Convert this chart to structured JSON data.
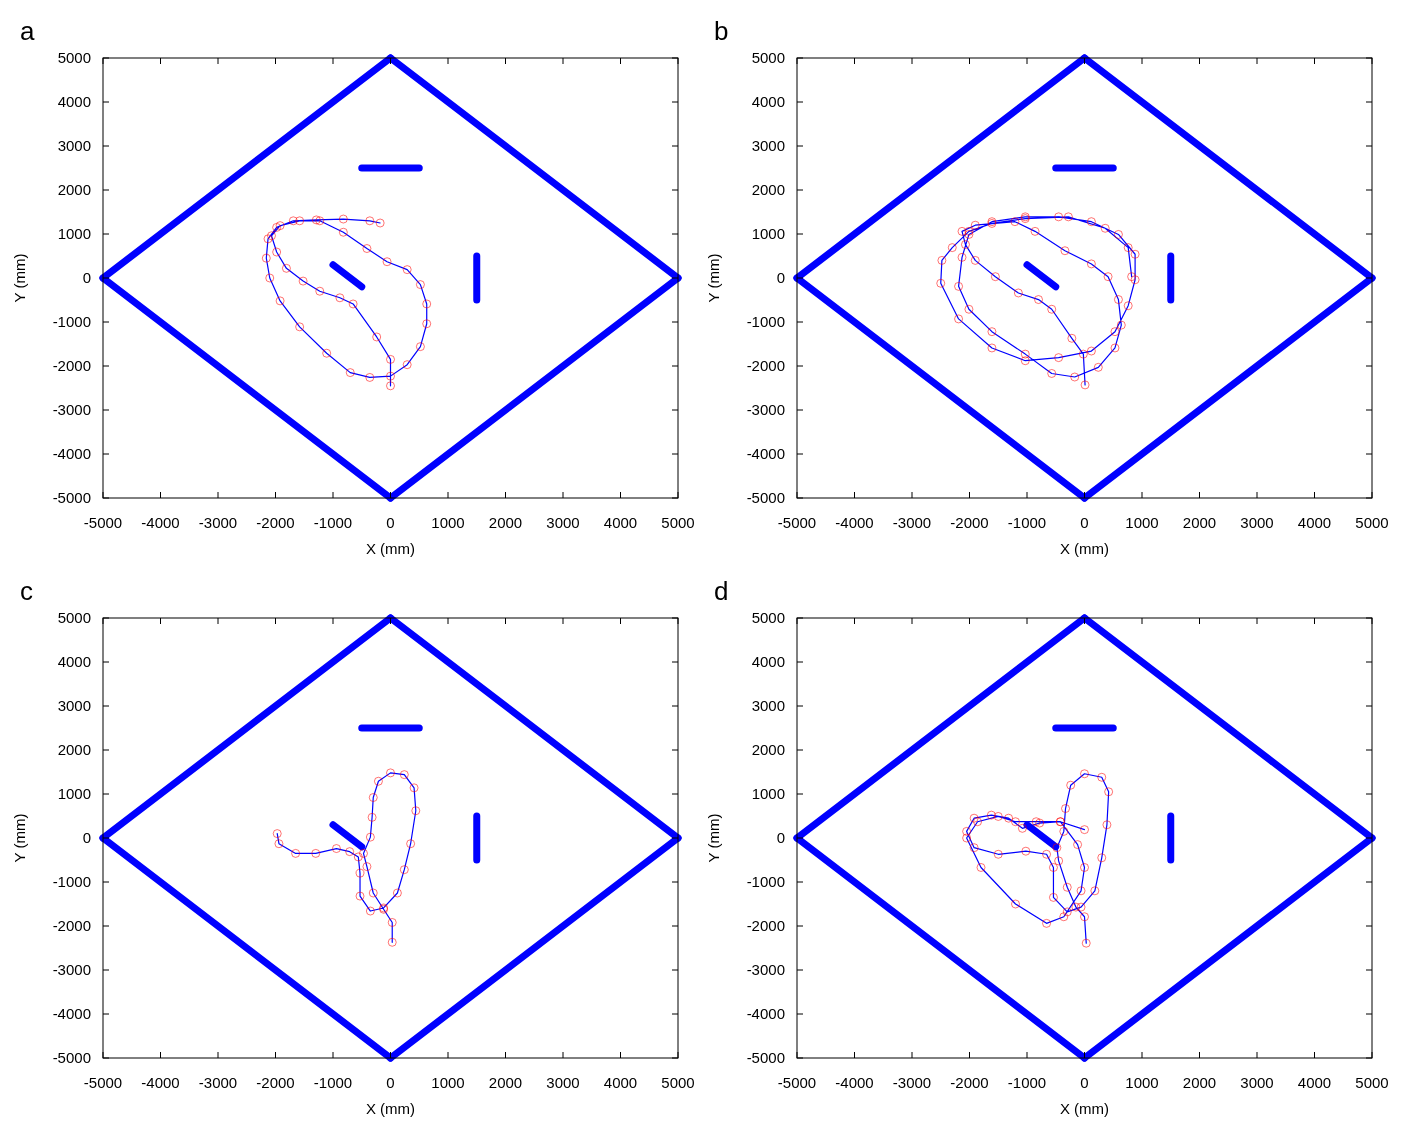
{
  "chart_data": [
    {
      "type": "line",
      "title": "a",
      "xlabel": "X (mm)",
      "ylabel": "Y (mm)",
      "xlim": [
        -5000,
        5000
      ],
      "ylim": [
        -5000,
        5000
      ],
      "xticks": [
        -5000,
        -4000,
        -3000,
        -2000,
        -1000,
        0,
        1000,
        2000,
        3000,
        4000,
        5000
      ],
      "yticks": [
        -5000,
        -4000,
        -3000,
        -2000,
        -1000,
        0,
        1000,
        2000,
        3000,
        4000,
        5000
      ],
      "series": [
        {
          "color": "#0000ff",
          "x": [
            -5000,
            0
          ],
          "values": [
            0,
            5000
          ]
        },
        {
          "color": "#0000ff",
          "x": [
            0,
            5000
          ],
          "values": [
            5000,
            0
          ]
        },
        {
          "color": "#0000ff",
          "x": [
            -5000,
            0
          ],
          "values": [
            0,
            -5000
          ]
        },
        {
          "color": "#0000ff",
          "x": [
            0,
            5000
          ],
          "values": [
            -5000,
            0
          ]
        },
        {
          "color": "#0000ff",
          "x": [
            -500,
            500
          ],
          "values": [
            2500,
            2500
          ]
        },
        {
          "color": "#0000ff",
          "x": [
            1500,
            1500
          ],
          "values": [
            500,
            -500
          ]
        },
        {
          "color": "#0000ff",
          "x": [
            -1000,
            -500
          ],
          "values": [
            300,
            -200
          ]
        },
        {
          "color": "#0000ff",
          "x": [
            0,
            0,
            -240,
            -650,
            -880,
            -1230,
            -1520,
            -1810,
            -1980,
            -2070,
            -1920,
            -1580,
            -1230,
            -820,
            -410,
            -60,
            290,
            520,
            630,
            630,
            520,
            290,
            0,
            -360,
            -700,
            -1110,
            -1580,
            -1920,
            -2100,
            -2160,
            -2130,
            -1980,
            -1690,
            -1290,
            -820,
            -360,
            -180
          ],
          "values": [
            -2450,
            -1850,
            -1340,
            -590,
            -450,
            -300,
            -70,
            220,
            590,
            960,
            1190,
            1300,
            1300,
            1040,
            670,
            370,
            190,
            -150,
            -590,
            -1040,
            -1560,
            -1970,
            -2230,
            -2260,
            -2150,
            -1710,
            -1110,
            -520,
            0,
            450,
            890,
            1150,
            1300,
            1320,
            1340,
            1300,
            1250
          ]
        },
        {
          "type": "scatter",
          "marker": "circle",
          "color": "#ff0000",
          "x": [
            0,
            0,
            -240,
            -650,
            -880,
            -1230,
            -1520,
            -1810,
            -1980,
            -2070,
            -1920,
            -1580,
            -1230,
            -820,
            -410,
            -60,
            290,
            520,
            630,
            630,
            520,
            290,
            0,
            -360,
            -700,
            -1110,
            -1580,
            -1920,
            -2100,
            -2160,
            -2130,
            -1980,
            -1690,
            -1290,
            -820,
            -360,
            -180
          ],
          "values": [
            -2450,
            -1850,
            -1340,
            -590,
            -450,
            -300,
            -70,
            220,
            590,
            960,
            1190,
            1300,
            1300,
            1040,
            670,
            370,
            190,
            -150,
            -590,
            -1040,
            -1560,
            -1970,
            -2230,
            -2260,
            -2150,
            -1710,
            -1110,
            -520,
            0,
            450,
            890,
            1150,
            1300,
            1320,
            1340,
            1300,
            1250
          ]
        }
      ]
    },
    {
      "type": "line",
      "title": "b",
      "xlabel": "X (mm)",
      "ylabel": "Y (mm)",
      "xlim": [
        -5000,
        5000
      ],
      "ylim": [
        -5000,
        5000
      ],
      "xticks": [
        -5000,
        -4000,
        -3000,
        -2000,
        -1000,
        0,
        1000,
        2000,
        3000,
        4000,
        5000
      ],
      "yticks": [
        -5000,
        -4000,
        -3000,
        -2000,
        -1000,
        0,
        1000,
        2000,
        3000,
        4000,
        5000
      ],
      "series": [
        {
          "color": "#0000ff",
          "x": [
            -5000,
            0
          ],
          "values": [
            0,
            5000
          ]
        },
        {
          "color": "#0000ff",
          "x": [
            0,
            5000
          ],
          "values": [
            5000,
            0
          ]
        },
        {
          "color": "#0000ff",
          "x": [
            -5000,
            0
          ],
          "values": [
            0,
            -5000
          ]
        },
        {
          "color": "#0000ff",
          "x": [
            0,
            5000
          ],
          "values": [
            -5000,
            0
          ]
        },
        {
          "color": "#0000ff",
          "x": [
            -500,
            500
          ],
          "values": [
            2500,
            2500
          ]
        },
        {
          "color": "#0000ff",
          "x": [
            1500,
            1500
          ],
          "values": [
            500,
            -500
          ]
        },
        {
          "color": "#0000ff",
          "x": [
            -1000,
            -500
          ],
          "values": [
            300,
            -200
          ]
        },
        {
          "color": "#0000ff",
          "x": [
            10,
            -20,
            -220,
            -570,
            -800,
            -1150,
            -1550,
            -1900,
            -2070,
            -2130,
            -1900,
            -1210,
            -860,
            -340,
            120,
            410,
            590,
            640,
            530,
            240,
            -170,
            -570,
            -1030,
            -1610,
            -2010,
            -2190,
            -2130,
            -2010,
            -1610,
            -1030,
            -450,
            120,
            590,
            880,
            880,
            760,
            530,
            120,
            -450,
            -1030,
            -1610,
            -2190,
            -2500,
            -2480,
            -2300,
            -2010,
            -1610,
            -1030,
            -280,
            360,
            760,
            820
          ],
          "values": [
            -2430,
            -1730,
            -1370,
            -710,
            -490,
            -340,
            30,
            400,
            760,
            1060,
            1200,
            1280,
            1060,
            620,
            320,
            30,
            -490,
            -1070,
            -1590,
            -2030,
            -2250,
            -2170,
            -1730,
            -1220,
            -710,
            -190,
            470,
            990,
            1280,
            1390,
            1390,
            1280,
            990,
            540,
            -40,
            -630,
            -1220,
            -1660,
            -1810,
            -1880,
            -1590,
            -930,
            -120,
            400,
            690,
            1060,
            1240,
            1350,
            1390,
            1130,
            690,
            30
          ]
        },
        {
          "type": "scatter",
          "marker": "circle",
          "color": "#ff0000",
          "x": [
            10,
            -20,
            -220,
            -570,
            -800,
            -1150,
            -1550,
            -1900,
            -2070,
            -2130,
            -1900,
            -1210,
            -860,
            -340,
            120,
            410,
            590,
            640,
            530,
            240,
            -170,
            -570,
            -1030,
            -1610,
            -2010,
            -2190,
            -2130,
            -2010,
            -1610,
            -1030,
            -450,
            120,
            590,
            880,
            880,
            760,
            530,
            120,
            -450,
            -1030,
            -1610,
            -2190,
            -2500,
            -2480,
            -2300,
            -2010,
            -1610,
            -1030,
            -280,
            360,
            760,
            820
          ],
          "values": [
            -2430,
            -1730,
            -1370,
            -710,
            -490,
            -340,
            30,
            400,
            760,
            1060,
            1200,
            1280,
            1060,
            620,
            320,
            30,
            -490,
            -1070,
            -1590,
            -2030,
            -2250,
            -2170,
            -1730,
            -1220,
            -710,
            -190,
            470,
            990,
            1280,
            1390,
            1390,
            1280,
            990,
            540,
            -40,
            -630,
            -1220,
            -1660,
            -1810,
            -1880,
            -1590,
            -930,
            -120,
            400,
            690,
            1060,
            1240,
            1350,
            1390,
            1130,
            690,
            30
          ]
        }
      ]
    },
    {
      "type": "line",
      "title": "c",
      "xlabel": "X (mm)",
      "ylabel": "Y (mm)",
      "xlim": [
        -5000,
        5000
      ],
      "ylim": [
        -5000,
        5000
      ],
      "xticks": [
        -5000,
        -4000,
        -3000,
        -2000,
        -1000,
        0,
        1000,
        2000,
        3000,
        4000,
        5000
      ],
      "yticks": [
        -5000,
        -4000,
        -3000,
        -2000,
        -1000,
        0,
        1000,
        2000,
        3000,
        4000,
        5000
      ],
      "series": [
        {
          "color": "#0000ff",
          "x": [
            -5000,
            0
          ],
          "values": [
            0,
            5000
          ]
        },
        {
          "color": "#0000ff",
          "x": [
            0,
            5000
          ],
          "values": [
            5000,
            0
          ]
        },
        {
          "color": "#0000ff",
          "x": [
            -5000,
            0
          ],
          "values": [
            0,
            -5000
          ]
        },
        {
          "color": "#0000ff",
          "x": [
            0,
            5000
          ],
          "values": [
            -5000,
            0
          ]
        },
        {
          "color": "#0000ff",
          "x": [
            -500,
            500
          ],
          "values": [
            2500,
            2500
          ]
        },
        {
          "color": "#0000ff",
          "x": [
            1500,
            1500
          ],
          "values": [
            500,
            -500
          ]
        },
        {
          "color": "#0000ff",
          "x": [
            -1000,
            -500
          ],
          "values": [
            300,
            -200
          ]
        },
        {
          "color": "#0000ff",
          "x": [
            30,
            30,
            -120,
            -300,
            -410,
            -470,
            -350,
            -320,
            -300,
            -210,
            0,
            240,
            410,
            440,
            350,
            240,
            120,
            -120,
            -350,
            -530,
            -530,
            -560,
            -710,
            -940,
            -1300,
            -1650,
            -1940,
            -1970
          ],
          "values": [
            -2370,
            -1920,
            -1620,
            -1250,
            -650,
            -350,
            20,
            470,
            920,
            1290,
            1480,
            1440,
            1140,
            620,
            -130,
            -720,
            -1250,
            -1590,
            -1660,
            -1320,
            -800,
            -430,
            -310,
            -240,
            -350,
            -350,
            -130,
            100
          ]
        },
        {
          "type": "scatter",
          "marker": "circle",
          "color": "#ff0000",
          "x": [
            30,
            30,
            -120,
            -300,
            -410,
            -470,
            -350,
            -320,
            -300,
            -210,
            0,
            240,
            410,
            440,
            350,
            240,
            120,
            -120,
            -350,
            -530,
            -530,
            -560,
            -710,
            -940,
            -1300,
            -1650,
            -1940,
            -1970
          ],
          "values": [
            -2370,
            -1920,
            -1620,
            -1250,
            -650,
            -350,
            20,
            470,
            920,
            1290,
            1480,
            1440,
            1140,
            620,
            -130,
            -720,
            -1250,
            -1590,
            -1660,
            -1320,
            -800,
            -430,
            -310,
            -240,
            -350,
            -350,
            -130,
            100
          ]
        }
      ]
    },
    {
      "type": "line",
      "title": "d",
      "xlabel": "X (mm)",
      "ylabel": "Y (mm)",
      "xlim": [
        -5000,
        5000
      ],
      "ylim": [
        -5000,
        5000
      ],
      "xticks": [
        -5000,
        -4000,
        -3000,
        -2000,
        -1000,
        0,
        1000,
        2000,
        3000,
        4000,
        5000
      ],
      "yticks": [
        -5000,
        -4000,
        -3000,
        -2000,
        -1000,
        0,
        1000,
        2000,
        3000,
        4000,
        5000
      ],
      "series": [
        {
          "color": "#0000ff",
          "x": [
            -5000,
            0
          ],
          "values": [
            0,
            5000
          ]
        },
        {
          "color": "#0000ff",
          "x": [
            0,
            5000
          ],
          "values": [
            5000,
            0
          ]
        },
        {
          "color": "#0000ff",
          "x": [
            -5000,
            0
          ],
          "values": [
            0,
            -5000
          ]
        },
        {
          "color": "#0000ff",
          "x": [
            0,
            5000
          ],
          "values": [
            -5000,
            0
          ]
        },
        {
          "color": "#0000ff",
          "x": [
            -500,
            500
          ],
          "values": [
            2500,
            2500
          ]
        },
        {
          "color": "#0000ff",
          "x": [
            1500,
            1500
          ],
          "values": [
            500,
            -500
          ]
        },
        {
          "color": "#0000ff",
          "x": [
            -1000,
            -500
          ],
          "values": [
            300,
            -200
          ]
        },
        {
          "color": "#0000ff",
          "x": [
            30,
            0,
            -150,
            -300,
            -450,
            -480,
            -360,
            -330,
            -240,
            0,
            300,
            420,
            390,
            300,
            180,
            -60,
            -300,
            -540,
            -540,
            -660,
            -1020,
            -1500,
            -1920,
            -2050,
            -1920,
            -1620,
            -1320,
            -1080,
            -780,
            -420,
            -120,
            0,
            -60,
            -360,
            -660,
            -1200,
            -1800,
            -2050,
            -1860,
            -1500,
            -1200,
            -840,
            -420,
            0
          ],
          "values": [
            -2390,
            -1790,
            -1570,
            -1120,
            -520,
            -220,
            150,
            670,
            1200,
            1460,
            1380,
            1050,
            300,
            -450,
            -1200,
            -1570,
            -1680,
            -1350,
            -670,
            -370,
            -300,
            -370,
            -220,
            150,
            450,
            520,
            450,
            220,
            340,
            370,
            -150,
            -670,
            -1200,
            -1790,
            -1940,
            -1500,
            -670,
            0,
            370,
            490,
            370,
            370,
            370,
            190
          ]
        },
        {
          "type": "scatter",
          "marker": "circle",
          "color": "#ff0000",
          "x": [
            30,
            0,
            -150,
            -300,
            -450,
            -480,
            -360,
            -330,
            -240,
            0,
            300,
            420,
            390,
            300,
            180,
            -60,
            -300,
            -540,
            -540,
            -660,
            -1020,
            -1500,
            -1920,
            -2050,
            -1920,
            -1620,
            -1320,
            -1080,
            -780,
            -420,
            -120,
            0,
            -60,
            -360,
            -660,
            -1200,
            -1800,
            -2050,
            -1860,
            -1500,
            -1200,
            -840,
            -420,
            0
          ],
          "values": [
            -2390,
            -1790,
            -1570,
            -1120,
            -520,
            -220,
            150,
            670,
            1200,
            1460,
            1380,
            1050,
            300,
            -450,
            -1200,
            -1570,
            -1680,
            -1350,
            -670,
            -370,
            -300,
            -370,
            -220,
            150,
            450,
            520,
            450,
            220,
            340,
            370,
            -150,
            -670,
            -1200,
            -1790,
            -1940,
            -1500,
            -670,
            0,
            370,
            490,
            370,
            370,
            370,
            190
          ]
        }
      ]
    }
  ]
}
